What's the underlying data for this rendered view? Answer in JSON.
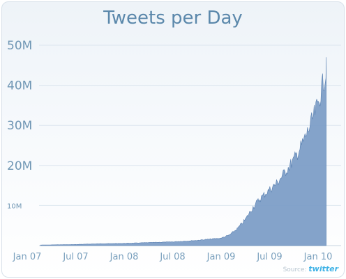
{
  "chart_data": {
    "type": "area",
    "title": "Tweets per Day",
    "xlabel": "",
    "ylabel": "",
    "x_ticks": [
      "Jan 07",
      "Jul 07",
      "Jan 08",
      "Jul 08",
      "Jan 09",
      "Jul 09",
      "Jan 10"
    ],
    "y_ticks": [
      {
        "value": 10,
        "label": "10M"
      },
      {
        "value": 20,
        "label": "20M"
      },
      {
        "value": 30,
        "label": "30M"
      },
      {
        "value": 40,
        "label": "40M"
      },
      {
        "value": 50,
        "label": "50M"
      }
    ],
    "ylim": [
      0,
      50
    ],
    "y_unit": "M",
    "grid": true,
    "source_label": "Source:",
    "source_brand": "twitter",
    "series": [
      {
        "x": [
          "Jan 07",
          "Apr 07",
          "Jul 07",
          "Oct 07",
          "Jan 08",
          "Apr 08",
          "Jul 08",
          "Oct 08",
          "Jan 09",
          "Feb 09",
          "Mar 09",
          "Apr 09",
          "May 09",
          "Jun 09",
          "Jul 09",
          "Aug 09",
          "Sep 09",
          "Oct 09",
          "Nov 09",
          "Dec 09",
          "Jan 10",
          "Feb 10"
        ],
        "values": [
          0.1,
          0.2,
          0.3,
          0.5,
          0.6,
          0.8,
          1.0,
          1.4,
          2.0,
          2.8,
          4.5,
          7.0,
          10.5,
          13.0,
          15.0,
          17.0,
          20.0,
          23.0,
          27.0,
          32.0,
          38.0,
          47.0
        ]
      }
    ],
    "colors": {
      "fill": "#7d9ec7",
      "stroke": "#587fb0",
      "grid": "#dbe5ee",
      "axis": "#c7d4df"
    }
  }
}
